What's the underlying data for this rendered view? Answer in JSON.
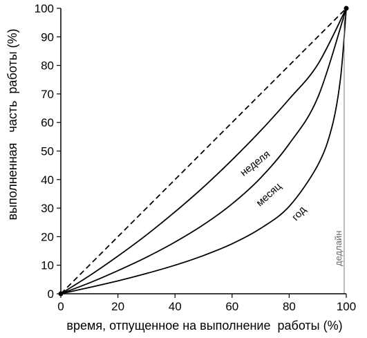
{
  "chart_data": {
    "type": "line",
    "xlabel": "время, отпущенное на выполнение  работы (%)",
    "ylabel": "выполненная   часть  работы (%)",
    "xlim": [
      0,
      100
    ],
    "ylim": [
      0,
      100
    ],
    "x_ticks": [
      0,
      20,
      40,
      60,
      80,
      100
    ],
    "y_ticks": [
      0,
      10,
      20,
      30,
      40,
      50,
      60,
      70,
      80,
      90,
      100
    ],
    "grid": false,
    "series": [
      {
        "name": "",
        "style": "dashed",
        "x": [
          0,
          100
        ],
        "y": [
          0,
          100
        ]
      },
      {
        "name": "неделя",
        "style": "solid",
        "x": [
          0,
          10,
          20,
          30,
          40,
          50,
          60,
          70,
          80,
          90,
          100
        ],
        "y": [
          0,
          6.3,
          13.2,
          20.6,
          28.7,
          37.4,
          46.9,
          57.1,
          68.2,
          80.3,
          100
        ]
      },
      {
        "name": "месяц",
        "style": "solid",
        "x": [
          0,
          10,
          20,
          30,
          40,
          50,
          60,
          70,
          80,
          90,
          100
        ],
        "y": [
          0,
          3.8,
          8.1,
          12.8,
          18.1,
          24.2,
          31.5,
          40.6,
          52.5,
          68.7,
          100
        ]
      },
      {
        "name": "год",
        "style": "solid",
        "x": [
          0,
          10,
          20,
          30,
          40,
          50,
          60,
          70,
          80,
          90,
          95,
          98,
          100
        ],
        "y": [
          0,
          2.2,
          4.5,
          7.1,
          10.0,
          13.4,
          17.5,
          22.9,
          30.6,
          45.0,
          58.5,
          75.6,
          100
        ]
      }
    ],
    "annotations": [
      {
        "text": "дедлайн",
        "x": 100
      }
    ]
  }
}
